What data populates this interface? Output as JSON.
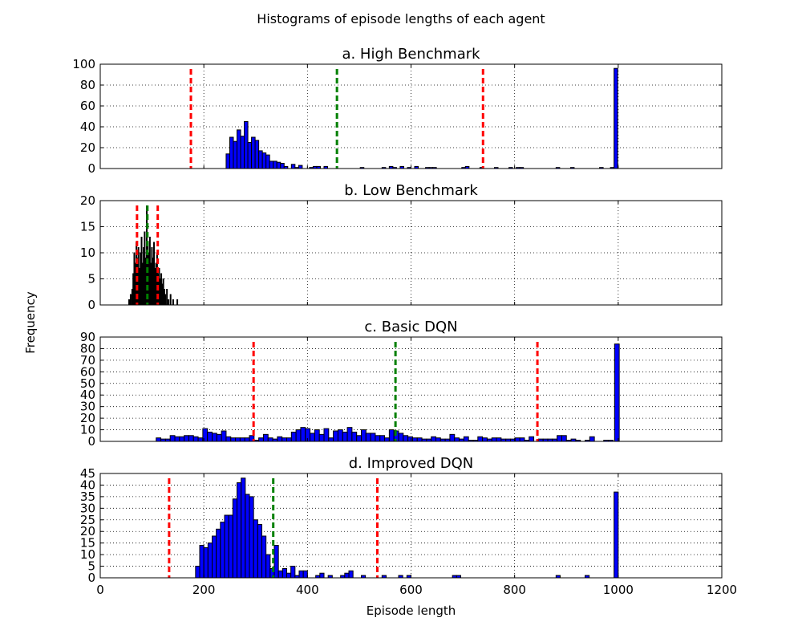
{
  "figure": {
    "title": "Histograms of episode lengths of each agent",
    "ylabel": "Frequency",
    "xlabel": "Episode length"
  },
  "chart_data": [
    {
      "type": "bar",
      "title": "a. High Benchmark",
      "xlim": [
        0,
        1200
      ],
      "ylim": [
        0,
        100
      ],
      "yticks": [
        0,
        20,
        40,
        60,
        80,
        100
      ],
      "xticks": [
        0,
        200,
        400,
        600,
        800,
        1000,
        1200
      ],
      "show_xtick_labels": false,
      "grid": true,
      "bar_color": "#0000ff",
      "bin_width": 7,
      "bins": [
        {
          "x": 243,
          "y": 14
        },
        {
          "x": 250,
          "y": 30
        },
        {
          "x": 257,
          "y": 26
        },
        {
          "x": 264,
          "y": 37
        },
        {
          "x": 271,
          "y": 31
        },
        {
          "x": 278,
          "y": 45
        },
        {
          "x": 285,
          "y": 25
        },
        {
          "x": 292,
          "y": 30
        },
        {
          "x": 299,
          "y": 27
        },
        {
          "x": 306,
          "y": 17
        },
        {
          "x": 313,
          "y": 15
        },
        {
          "x": 320,
          "y": 13
        },
        {
          "x": 327,
          "y": 7
        },
        {
          "x": 334,
          "y": 7
        },
        {
          "x": 341,
          "y": 6
        },
        {
          "x": 348,
          "y": 5
        },
        {
          "x": 355,
          "y": 2
        },
        {
          "x": 369,
          "y": 4
        },
        {
          "x": 376,
          "y": 1
        },
        {
          "x": 383,
          "y": 3
        },
        {
          "x": 404,
          "y": 1
        },
        {
          "x": 411,
          "y": 2
        },
        {
          "x": 418,
          "y": 2
        },
        {
          "x": 432,
          "y": 2
        },
        {
          "x": 502,
          "y": 1
        },
        {
          "x": 544,
          "y": 1
        },
        {
          "x": 558,
          "y": 2
        },
        {
          "x": 565,
          "y": 1
        },
        {
          "x": 579,
          "y": 2
        },
        {
          "x": 593,
          "y": 1
        },
        {
          "x": 607,
          "y": 2
        },
        {
          "x": 628,
          "y": 1
        },
        {
          "x": 635,
          "y": 1
        },
        {
          "x": 642,
          "y": 1
        },
        {
          "x": 698,
          "y": 1
        },
        {
          "x": 705,
          "y": 2
        },
        {
          "x": 733,
          "y": 1
        },
        {
          "x": 761,
          "y": 1
        },
        {
          "x": 789,
          "y": 1
        },
        {
          "x": 803,
          "y": 1
        },
        {
          "x": 810,
          "y": 1
        },
        {
          "x": 880,
          "y": 1
        },
        {
          "x": 908,
          "y": 1
        },
        {
          "x": 964,
          "y": 1
        },
        {
          "x": 985,
          "y": 1
        },
        {
          "x": 992,
          "y": 96
        }
      ],
      "reference_lines": [
        {
          "x": 175,
          "color": "#ff0000"
        },
        {
          "x": 457,
          "color": "#008000"
        },
        {
          "x": 739,
          "color": "#ff0000"
        }
      ]
    },
    {
      "type": "bar",
      "title": "b. Low Benchmark",
      "xlim": [
        0,
        1200
      ],
      "ylim": [
        0,
        20
      ],
      "yticks": [
        0,
        5,
        10,
        15,
        20
      ],
      "xticks": [
        0,
        200,
        400,
        600,
        800,
        1000,
        1200
      ],
      "show_xtick_labels": false,
      "grid": true,
      "bar_color": "#0000ff",
      "bin_width": 1,
      "bins": [
        {
          "x": 55,
          "y": 1
        },
        {
          "x": 58,
          "y": 2
        },
        {
          "x": 61,
          "y": 3
        },
        {
          "x": 63,
          "y": 6
        },
        {
          "x": 65,
          "y": 10
        },
        {
          "x": 67,
          "y": 8
        },
        {
          "x": 69,
          "y": 12
        },
        {
          "x": 71,
          "y": 9
        },
        {
          "x": 73,
          "y": 11
        },
        {
          "x": 75,
          "y": 7
        },
        {
          "x": 77,
          "y": 10
        },
        {
          "x": 79,
          "y": 13
        },
        {
          "x": 81,
          "y": 8
        },
        {
          "x": 83,
          "y": 11
        },
        {
          "x": 85,
          "y": 14
        },
        {
          "x": 87,
          "y": 9
        },
        {
          "x": 89,
          "y": 19
        },
        {
          "x": 91,
          "y": 12
        },
        {
          "x": 93,
          "y": 10
        },
        {
          "x": 95,
          "y": 13
        },
        {
          "x": 97,
          "y": 8
        },
        {
          "x": 99,
          "y": 11
        },
        {
          "x": 101,
          "y": 9
        },
        {
          "x": 103,
          "y": 12
        },
        {
          "x": 105,
          "y": 7
        },
        {
          "x": 107,
          "y": 8
        },
        {
          "x": 109,
          "y": 10
        },
        {
          "x": 111,
          "y": 6
        },
        {
          "x": 113,
          "y": 7
        },
        {
          "x": 115,
          "y": 5
        },
        {
          "x": 117,
          "y": 6
        },
        {
          "x": 119,
          "y": 4
        },
        {
          "x": 121,
          "y": 5
        },
        {
          "x": 123,
          "y": 3
        },
        {
          "x": 125,
          "y": 2
        },
        {
          "x": 128,
          "y": 3
        },
        {
          "x": 131,
          "y": 1
        },
        {
          "x": 135,
          "y": 2
        },
        {
          "x": 140,
          "y": 1
        },
        {
          "x": 148,
          "y": 1
        }
      ],
      "reference_lines": [
        {
          "x": 71,
          "color": "#ff0000"
        },
        {
          "x": 91,
          "color": "#008000"
        },
        {
          "x": 111,
          "color": "#ff0000"
        }
      ]
    },
    {
      "type": "bar",
      "title": "c. Basic DQN",
      "xlim": [
        0,
        1200
      ],
      "ylim": [
        0,
        90
      ],
      "yticks": [
        0,
        10,
        20,
        30,
        40,
        50,
        60,
        70,
        80,
        90
      ],
      "xticks": [
        0,
        200,
        400,
        600,
        800,
        1000,
        1200
      ],
      "show_xtick_labels": false,
      "grid": true,
      "bar_color": "#0000ff",
      "bin_width": 9,
      "bins": [
        {
          "x": 108,
          "y": 3
        },
        {
          "x": 117,
          "y": 2
        },
        {
          "x": 126,
          "y": 2
        },
        {
          "x": 135,
          "y": 5
        },
        {
          "x": 144,
          "y": 4
        },
        {
          "x": 153,
          "y": 4
        },
        {
          "x": 162,
          "y": 5
        },
        {
          "x": 171,
          "y": 5
        },
        {
          "x": 180,
          "y": 4
        },
        {
          "x": 189,
          "y": 3
        },
        {
          "x": 198,
          "y": 11
        },
        {
          "x": 207,
          "y": 8
        },
        {
          "x": 216,
          "y": 7
        },
        {
          "x": 225,
          "y": 6
        },
        {
          "x": 234,
          "y": 9
        },
        {
          "x": 243,
          "y": 4
        },
        {
          "x": 252,
          "y": 3
        },
        {
          "x": 261,
          "y": 3
        },
        {
          "x": 270,
          "y": 3
        },
        {
          "x": 279,
          "y": 3
        },
        {
          "x": 288,
          "y": 5
        },
        {
          "x": 297,
          "y": 1
        },
        {
          "x": 306,
          "y": 3
        },
        {
          "x": 315,
          "y": 6
        },
        {
          "x": 324,
          "y": 3
        },
        {
          "x": 333,
          "y": 2
        },
        {
          "x": 342,
          "y": 4
        },
        {
          "x": 351,
          "y": 3
        },
        {
          "x": 360,
          "y": 3
        },
        {
          "x": 369,
          "y": 8
        },
        {
          "x": 378,
          "y": 10
        },
        {
          "x": 387,
          "y": 12
        },
        {
          "x": 396,
          "y": 11
        },
        {
          "x": 405,
          "y": 7
        },
        {
          "x": 414,
          "y": 10
        },
        {
          "x": 423,
          "y": 6
        },
        {
          "x": 432,
          "y": 11
        },
        {
          "x": 441,
          "y": 3
        },
        {
          "x": 450,
          "y": 9
        },
        {
          "x": 459,
          "y": 10
        },
        {
          "x": 468,
          "y": 8
        },
        {
          "x": 477,
          "y": 12
        },
        {
          "x": 486,
          "y": 8
        },
        {
          "x": 495,
          "y": 5
        },
        {
          "x": 504,
          "y": 10
        },
        {
          "x": 513,
          "y": 7
        },
        {
          "x": 522,
          "y": 7
        },
        {
          "x": 531,
          "y": 5
        },
        {
          "x": 540,
          "y": 5
        },
        {
          "x": 549,
          "y": 3
        },
        {
          "x": 558,
          "y": 10
        },
        {
          "x": 567,
          "y": 9
        },
        {
          "x": 576,
          "y": 7
        },
        {
          "x": 585,
          "y": 5
        },
        {
          "x": 594,
          "y": 4
        },
        {
          "x": 603,
          "y": 3
        },
        {
          "x": 612,
          "y": 3
        },
        {
          "x": 621,
          "y": 2
        },
        {
          "x": 630,
          "y": 2
        },
        {
          "x": 639,
          "y": 4
        },
        {
          "x": 648,
          "y": 3
        },
        {
          "x": 657,
          "y": 2
        },
        {
          "x": 666,
          "y": 2
        },
        {
          "x": 675,
          "y": 6
        },
        {
          "x": 684,
          "y": 3
        },
        {
          "x": 693,
          "y": 2
        },
        {
          "x": 702,
          "y": 4
        },
        {
          "x": 711,
          "y": 1
        },
        {
          "x": 720,
          "y": 1
        },
        {
          "x": 729,
          "y": 4
        },
        {
          "x": 738,
          "y": 3
        },
        {
          "x": 747,
          "y": 2
        },
        {
          "x": 756,
          "y": 3
        },
        {
          "x": 765,
          "y": 3
        },
        {
          "x": 774,
          "y": 2
        },
        {
          "x": 783,
          "y": 2
        },
        {
          "x": 792,
          "y": 2
        },
        {
          "x": 801,
          "y": 3
        },
        {
          "x": 810,
          "y": 3
        },
        {
          "x": 819,
          "y": 1
        },
        {
          "x": 828,
          "y": 4
        },
        {
          "x": 846,
          "y": 2
        },
        {
          "x": 855,
          "y": 2
        },
        {
          "x": 864,
          "y": 2
        },
        {
          "x": 873,
          "y": 2
        },
        {
          "x": 882,
          "y": 5
        },
        {
          "x": 891,
          "y": 5
        },
        {
          "x": 900,
          "y": 1
        },
        {
          "x": 909,
          "y": 2
        },
        {
          "x": 918,
          "y": 1
        },
        {
          "x": 936,
          "y": 1
        },
        {
          "x": 945,
          "y": 4
        },
        {
          "x": 972,
          "y": 1
        },
        {
          "x": 981,
          "y": 1
        },
        {
          "x": 993,
          "y": 84
        }
      ],
      "reference_lines": [
        {
          "x": 296,
          "color": "#ff0000"
        },
        {
          "x": 570,
          "color": "#008000"
        },
        {
          "x": 844,
          "color": "#ff0000"
        }
      ]
    },
    {
      "type": "bar",
      "title": "d. Improved DQN",
      "xlim": [
        0,
        1200
      ],
      "ylim": [
        0,
        45
      ],
      "yticks": [
        0,
        5,
        10,
        15,
        20,
        25,
        30,
        35,
        40,
        45
      ],
      "xticks": [
        0,
        200,
        400,
        600,
        800,
        1000,
        1200
      ],
      "show_xtick_labels": true,
      "grid": true,
      "bar_color": "#0000ff",
      "bin_width": 8,
      "bins": [
        {
          "x": 184,
          "y": 5
        },
        {
          "x": 192,
          "y": 14
        },
        {
          "x": 200,
          "y": 13
        },
        {
          "x": 208,
          "y": 15
        },
        {
          "x": 216,
          "y": 18
        },
        {
          "x": 224,
          "y": 21
        },
        {
          "x": 232,
          "y": 24
        },
        {
          "x": 240,
          "y": 27
        },
        {
          "x": 248,
          "y": 27
        },
        {
          "x": 256,
          "y": 34
        },
        {
          "x": 264,
          "y": 41
        },
        {
          "x": 272,
          "y": 43
        },
        {
          "x": 280,
          "y": 36
        },
        {
          "x": 288,
          "y": 35
        },
        {
          "x": 296,
          "y": 25
        },
        {
          "x": 304,
          "y": 23
        },
        {
          "x": 312,
          "y": 18
        },
        {
          "x": 320,
          "y": 10
        },
        {
          "x": 328,
          "y": 4
        },
        {
          "x": 336,
          "y": 14
        },
        {
          "x": 344,
          "y": 3
        },
        {
          "x": 352,
          "y": 4
        },
        {
          "x": 360,
          "y": 2
        },
        {
          "x": 368,
          "y": 5
        },
        {
          "x": 376,
          "y": 1
        },
        {
          "x": 384,
          "y": 3
        },
        {
          "x": 392,
          "y": 3
        },
        {
          "x": 416,
          "y": 1
        },
        {
          "x": 424,
          "y": 2
        },
        {
          "x": 440,
          "y": 1
        },
        {
          "x": 464,
          "y": 1
        },
        {
          "x": 472,
          "y": 2
        },
        {
          "x": 480,
          "y": 3
        },
        {
          "x": 504,
          "y": 1
        },
        {
          "x": 544,
          "y": 1
        },
        {
          "x": 576,
          "y": 1
        },
        {
          "x": 592,
          "y": 1
        },
        {
          "x": 680,
          "y": 1
        },
        {
          "x": 688,
          "y": 1
        },
        {
          "x": 880,
          "y": 1
        },
        {
          "x": 936,
          "y": 1
        },
        {
          "x": 992,
          "y": 37
        }
      ],
      "reference_lines": [
        {
          "x": 133,
          "color": "#ff0000"
        },
        {
          "x": 334,
          "color": "#008000"
        },
        {
          "x": 535,
          "color": "#ff0000"
        }
      ]
    }
  ]
}
